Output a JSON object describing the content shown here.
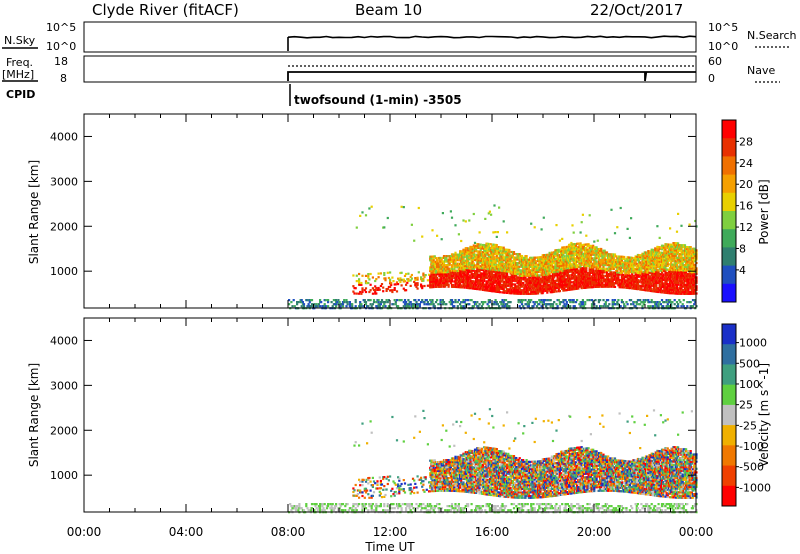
{
  "header": {
    "station": "Clyde River (fitACF)",
    "beam": "Beam 10",
    "date": "22/Oct/2017"
  },
  "top_panels": {
    "nsky_label": "N.Sky",
    "nsearch_label": "N.Search",
    "freq_label_1": "Freq.",
    "freq_label_2": "[MHz]",
    "nave_label": "Nave",
    "cpid_label": "CPID",
    "nsky_ticks": [
      "10^5",
      "10^0"
    ],
    "nsearch_ticks": [
      "10^5",
      "10^0"
    ],
    "freq_ticks": [
      "18",
      "8"
    ],
    "nave_ticks": [
      "60",
      "0"
    ],
    "cpid_text": "twofsound (1-min) -3505"
  },
  "chart_data": [
    {
      "type": "heatmap",
      "name": "power",
      "ylabel": "Slant Range [km]",
      "xlabel": "",
      "x_ticks": [
        "00:00",
        "04:00",
        "08:00",
        "12:00",
        "16:00",
        "20:00",
        "00:00"
      ],
      "x_range_hours": [
        0,
        24
      ],
      "y_ticks": [
        1000,
        2000,
        3000,
        4000
      ],
      "y_range_km": [
        180,
        4500
      ],
      "colorbar": {
        "label": "Power [dB]",
        "ticks": [
          "4",
          "8",
          "12",
          "16",
          "20",
          "24",
          "28"
        ],
        "colors": [
          "#1a10ff",
          "#1f4fbf",
          "#2f7f6f",
          "#3faa5a",
          "#7fcf3f",
          "#e8d000",
          "#f5a000",
          "#f07000",
          "#e83000",
          "#ff0000"
        ]
      }
    },
    {
      "type": "heatmap",
      "name": "velocity",
      "ylabel": "Slant Range [km]",
      "xlabel": "Time UT",
      "x_ticks": [
        "00:00",
        "04:00",
        "08:00",
        "12:00",
        "16:00",
        "20:00",
        "00:00"
      ],
      "x_range_hours": [
        0,
        24
      ],
      "y_ticks": [
        1000,
        2000,
        3000,
        4000
      ],
      "y_range_km": [
        180,
        4500
      ],
      "colorbar": {
        "label": "Velocity [m s^-1]",
        "ticks": [
          "1000",
          "500",
          "100",
          "25",
          "-25",
          "-100",
          "-500",
          "-1000"
        ],
        "colors": [
          "#1a30c8",
          "#2f6fa0",
          "#3f9f7f",
          "#5fd040",
          "#c0c0c0",
          "#f0b000",
          "#f07800",
          "#f04000",
          "#ff0000"
        ]
      }
    }
  ]
}
